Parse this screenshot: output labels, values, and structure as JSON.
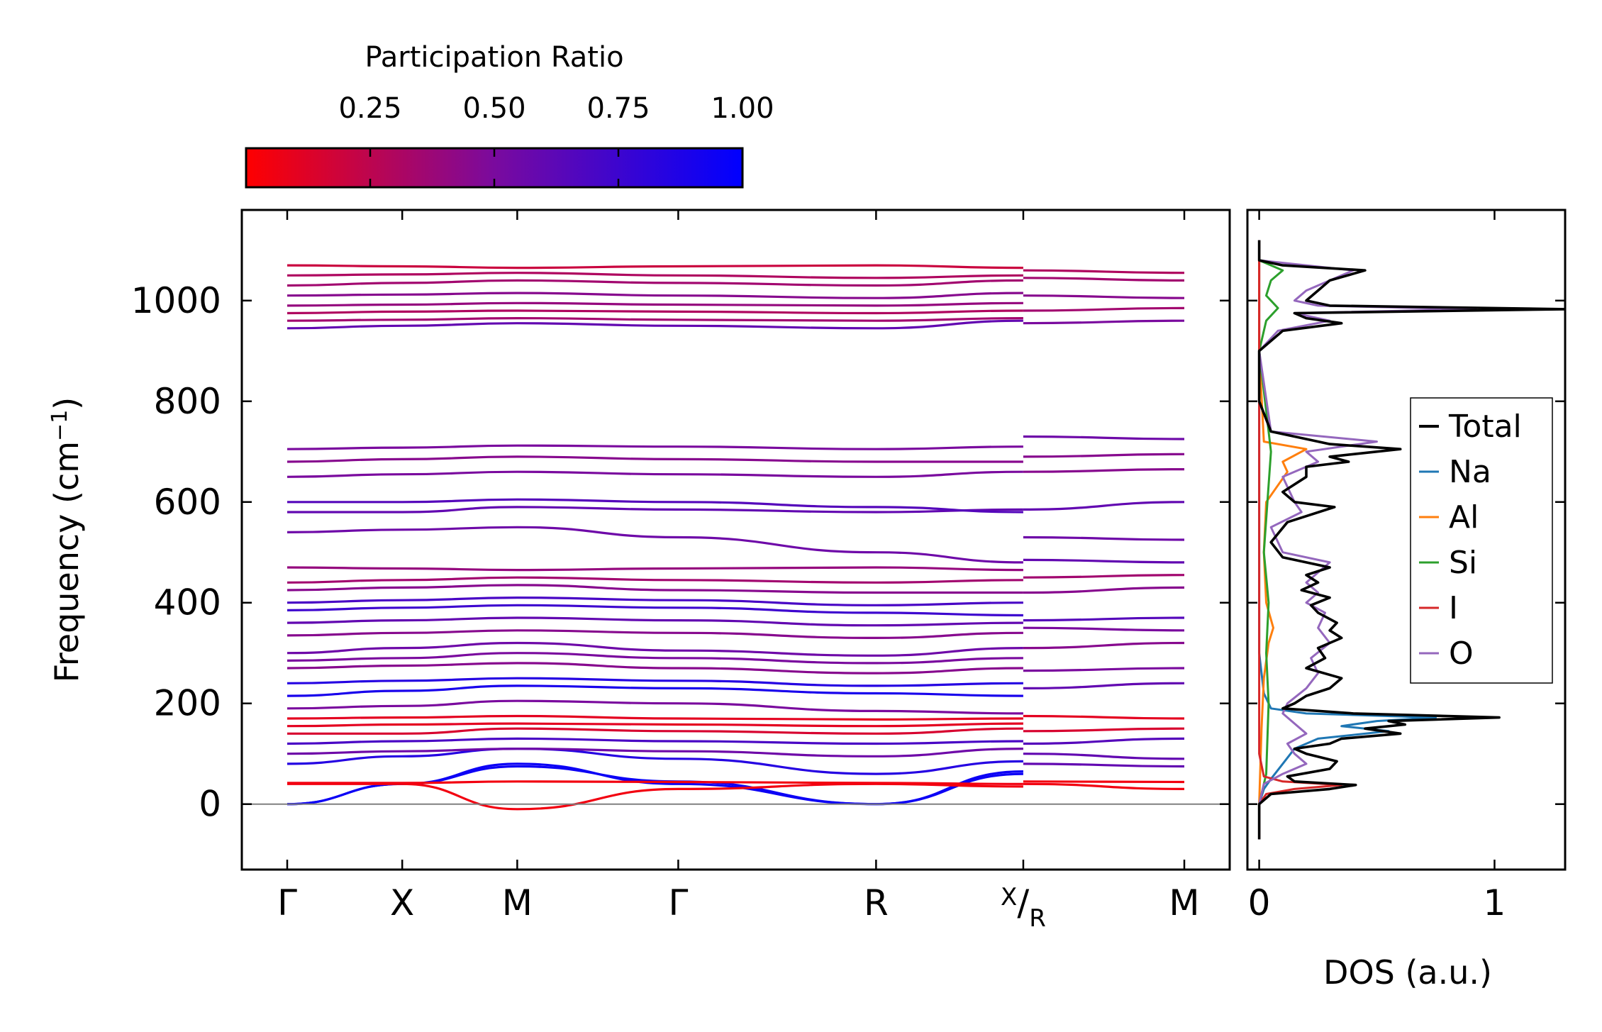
{
  "chart_data": [
    {
      "type": "line",
      "subtype": "phonon-band-structure",
      "ylabel_prefix": "Frequency (cm",
      "ylabel_sup": "−1",
      "ylabel_suffix": ")",
      "ylim": [
        -130,
        1180
      ],
      "yticks": [
        0,
        200,
        400,
        600,
        800,
        1000
      ],
      "x_segments": [
        [
          0,
          3.2
        ],
        [
          3.2,
          3.9
        ]
      ],
      "x_ticks": [
        {
          "pos": 0.0,
          "label": "Γ"
        },
        {
          "pos": 0.5,
          "label": "X"
        },
        {
          "pos": 1.0,
          "label": "M"
        },
        {
          "pos": 1.7,
          "label": "Γ"
        },
        {
          "pos": 2.56,
          "label": "R"
        },
        {
          "pos": 3.2,
          "label": "X",
          "label2": "R",
          "split": true
        },
        {
          "pos": 3.9,
          "label": "M"
        }
      ],
      "zero_line": 0,
      "bands_segment1": [
        {
          "y": [
            0,
            40,
            80,
            40,
            0,
            60,
            80
          ],
          "pr": 0.95
        },
        {
          "y": [
            0,
            40,
            75,
            45,
            0,
            65,
            80
          ],
          "pr": 0.95
        },
        {
          "y": [
            40,
            40,
            -10,
            30,
            40,
            35,
            38
          ],
          "pr": 0.05
        },
        {
          "y": [
            42,
            42,
            45,
            44,
            42,
            40,
            40
          ],
          "pr": 0.05
        },
        {
          "y": [
            80,
            95,
            110,
            90,
            60,
            85,
            90
          ],
          "pr": 0.85
        },
        {
          "y": [
            100,
            105,
            110,
            105,
            95,
            110,
            115
          ],
          "pr": 0.55
        },
        {
          "y": [
            120,
            125,
            130,
            125,
            120,
            125,
            128
          ],
          "pr": 0.7
        },
        {
          "y": [
            140,
            140,
            150,
            145,
            140,
            150,
            148
          ],
          "pr": 0.15
        },
        {
          "y": [
            155,
            158,
            160,
            158,
            155,
            160,
            160
          ],
          "pr": 0.1
        },
        {
          "y": [
            170,
            172,
            175,
            170,
            168,
            170,
            172
          ],
          "pr": 0.1
        },
        {
          "y": [
            190,
            195,
            205,
            200,
            185,
            180,
            190
          ],
          "pr": 0.5
        },
        {
          "y": [
            215,
            225,
            235,
            230,
            220,
            215,
            225
          ],
          "pr": 0.9
        },
        {
          "y": [
            240,
            245,
            250,
            245,
            235,
            240,
            240
          ],
          "pr": 0.85
        },
        {
          "y": [
            270,
            275,
            280,
            270,
            260,
            270,
            270
          ],
          "pr": 0.45
        },
        {
          "y": [
            285,
            290,
            300,
            290,
            280,
            290,
            290
          ],
          "pr": 0.5
        },
        {
          "y": [
            300,
            310,
            320,
            305,
            295,
            310,
            310
          ],
          "pr": 0.55
        },
        {
          "y": [
            335,
            340,
            345,
            340,
            330,
            340,
            345
          ],
          "pr": 0.45
        },
        {
          "y": [
            360,
            365,
            370,
            365,
            355,
            360,
            365
          ],
          "pr": 0.6
        },
        {
          "y": [
            385,
            390,
            395,
            390,
            380,
            375,
            390
          ],
          "pr": 0.75
        },
        {
          "y": [
            400,
            405,
            410,
            405,
            395,
            400,
            405
          ],
          "pr": 0.7
        },
        {
          "y": [
            425,
            430,
            435,
            425,
            420,
            420,
            430
          ],
          "pr": 0.45
        },
        {
          "y": [
            440,
            445,
            450,
            445,
            440,
            445,
            445
          ],
          "pr": 0.35
        },
        {
          "y": [
            470,
            468,
            465,
            468,
            470,
            465,
            470
          ],
          "pr": 0.4
        },
        {
          "y": [
            540,
            545,
            550,
            530,
            500,
            480,
            490
          ],
          "pr": 0.55
        },
        {
          "y": [
            580,
            580,
            590,
            585,
            580,
            585,
            585
          ],
          "pr": 0.6
        },
        {
          "y": [
            600,
            600,
            605,
            600,
            590,
            580,
            590
          ],
          "pr": 0.65
        },
        {
          "y": [
            650,
            655,
            660,
            655,
            650,
            660,
            660
          ],
          "pr": 0.5
        },
        {
          "y": [
            680,
            685,
            690,
            685,
            680,
            680,
            685
          ],
          "pr": 0.45
        },
        {
          "y": [
            705,
            708,
            712,
            710,
            705,
            710,
            710
          ],
          "pr": 0.5
        },
        {
          "y": [
            945,
            950,
            955,
            950,
            945,
            960,
            950
          ],
          "pr": 0.6
        },
        {
          "y": [
            960,
            962,
            965,
            962,
            960,
            965,
            965
          ],
          "pr": 0.35
        },
        {
          "y": [
            975,
            978,
            980,
            978,
            975,
            980,
            980
          ],
          "pr": 0.3
        },
        {
          "y": [
            990,
            992,
            995,
            992,
            990,
            995,
            995
          ],
          "pr": 0.4
        },
        {
          "y": [
            1010,
            1012,
            1015,
            1010,
            1005,
            1015,
            1010
          ],
          "pr": 0.45
        },
        {
          "y": [
            1030,
            1035,
            1040,
            1035,
            1030,
            1040,
            1045
          ],
          "pr": 0.35
        },
        {
          "y": [
            1050,
            1052,
            1055,
            1050,
            1045,
            1050,
            1050
          ],
          "pr": 0.3
        },
        {
          "y": [
            1070,
            1068,
            1065,
            1068,
            1070,
            1065,
            1070
          ],
          "pr": 0.2
        }
      ],
      "bands_segment2": [
        {
          "y": [
            80,
            75,
            70
          ],
          "pr": 0.6
        },
        {
          "y": [
            40,
            30,
            -15
          ],
          "pr": 0.05
        },
        {
          "y": [
            45,
            44,
            45
          ],
          "pr": 0.05
        },
        {
          "y": [
            100,
            90,
            90
          ],
          "pr": 0.6
        },
        {
          "y": [
            120,
            130,
            125
          ],
          "pr": 0.65
        },
        {
          "y": [
            145,
            150,
            160
          ],
          "pr": 0.15
        },
        {
          "y": [
            175,
            170,
            170
          ],
          "pr": 0.1
        },
        {
          "y": [
            230,
            240,
            250
          ],
          "pr": 0.6
        },
        {
          "y": [
            265,
            270,
            270
          ],
          "pr": 0.5
        },
        {
          "y": [
            310,
            320,
            330
          ],
          "pr": 0.45
        },
        {
          "y": [
            350,
            345,
            340
          ],
          "pr": 0.5
        },
        {
          "y": [
            365,
            370,
            360
          ],
          "pr": 0.65
        },
        {
          "y": [
            420,
            430,
            420
          ],
          "pr": 0.45
        },
        {
          "y": [
            450,
            455,
            460
          ],
          "pr": 0.35
        },
        {
          "y": [
            485,
            480,
            475
          ],
          "pr": 0.6
        },
        {
          "y": [
            530,
            525,
            515
          ],
          "pr": 0.55
        },
        {
          "y": [
            585,
            600,
            610
          ],
          "pr": 0.6
        },
        {
          "y": [
            660,
            665,
            665
          ],
          "pr": 0.45
        },
        {
          "y": [
            690,
            695,
            695
          ],
          "pr": 0.45
        },
        {
          "y": [
            730,
            725,
            720
          ],
          "pr": 0.55
        },
        {
          "y": [
            955,
            960,
            960
          ],
          "pr": 0.5
        },
        {
          "y": [
            980,
            985,
            985
          ],
          "pr": 0.35
        },
        {
          "y": [
            1010,
            1005,
            1000
          ],
          "pr": 0.45
        },
        {
          "y": [
            1045,
            1040,
            1045
          ],
          "pr": 0.35
        },
        {
          "y": [
            1060,
            1055,
            1065
          ],
          "pr": 0.3
        }
      ]
    },
    {
      "type": "colorbar",
      "title": "Participation Ratio",
      "range": [
        0.0,
        1.0
      ],
      "ticks": [
        0.25,
        0.5,
        0.75,
        1.0
      ],
      "tick_labels": [
        "0.25",
        "0.50",
        "0.75",
        "1.00"
      ],
      "colormap": {
        "low": "#ff0000",
        "mid": "#7a0a9e",
        "high": "#0000ff"
      }
    },
    {
      "type": "line",
      "subtype": "density-of-states",
      "xlabel": "DOS (a.u.)",
      "xlim": [
        -0.05,
        1.3
      ],
      "xticks": [
        0,
        1
      ],
      "xtick_labels": [
        "0",
        "1"
      ],
      "ylim": [
        -130,
        1180
      ],
      "legend_position": "right",
      "series": [
        {
          "name": "Total",
          "color": "#000000",
          "freq": [
            -70,
            0,
            20,
            30,
            38,
            45,
            55,
            70,
            85,
            100,
            110,
            120,
            130,
            140,
            150,
            158,
            165,
            172,
            180,
            190,
            200,
            215,
            230,
            250,
            270,
            290,
            310,
            330,
            345,
            360,
            380,
            395,
            410,
            425,
            440,
            455,
            470,
            490,
            520,
            560,
            590,
            600,
            620,
            650,
            670,
            680,
            690,
            705,
            715,
            725,
            740,
            800,
            900,
            940,
            955,
            965,
            975,
            983,
            990,
            1000,
            1020,
            1040,
            1060,
            1070,
            1080,
            1120
          ],
          "dos": [
            0,
            0,
            0.05,
            0.3,
            0.41,
            0.15,
            0.12,
            0.3,
            0.33,
            0.2,
            0.15,
            0.3,
            0.35,
            0.6,
            0.45,
            0.62,
            0.55,
            1.02,
            0.4,
            0.1,
            0.15,
            0.2,
            0.3,
            0.35,
            0.2,
            0.28,
            0.25,
            0.35,
            0.3,
            0.33,
            0.25,
            0.22,
            0.3,
            0.18,
            0.25,
            0.2,
            0.3,
            0.1,
            0.05,
            0.12,
            0.32,
            0.15,
            0.1,
            0.2,
            0.2,
            0.38,
            0.3,
            0.6,
            0.3,
            0.2,
            0.05,
            0,
            0,
            0.1,
            0.35,
            0.2,
            0.15,
            1.3,
            0.3,
            0.2,
            0.25,
            0.3,
            0.45,
            0.1,
            0,
            0
          ]
        },
        {
          "name": "Na",
          "color": "#1f77b4",
          "freq": [
            -70,
            0,
            30,
            50,
            80,
            110,
            130,
            145,
            155,
            165,
            172,
            180,
            190,
            220,
            300,
            1120
          ],
          "dos": [
            0,
            0,
            0.02,
            0.05,
            0.1,
            0.15,
            0.25,
            0.55,
            0.35,
            0.5,
            0.75,
            0.2,
            0.05,
            0.02,
            0,
            0
          ]
        },
        {
          "name": "Al",
          "color": "#ff7f0e",
          "freq": [
            -70,
            0,
            150,
            250,
            320,
            350,
            400,
            500,
            600,
            660,
            680,
            705,
            720,
            900,
            1120
          ],
          "dos": [
            0,
            0,
            0.01,
            0.02,
            0.04,
            0.06,
            0.03,
            0.02,
            0.03,
            0.12,
            0.1,
            0.2,
            0.02,
            0,
            0
          ]
        },
        {
          "name": "Si",
          "color": "#2ca02c",
          "freq": [
            -70,
            0,
            60,
            200,
            300,
            400,
            500,
            700,
            900,
            960,
            985,
            1010,
            1040,
            1060,
            1080,
            1120
          ],
          "dos": [
            0,
            0,
            0.03,
            0.04,
            0.03,
            0.04,
            0.02,
            0.05,
            0,
            0.03,
            0.08,
            0.03,
            0.05,
            0.1,
            0,
            0
          ]
        },
        {
          "name": "I",
          "color": "#d62728",
          "freq": [
            -70,
            0,
            20,
            30,
            38,
            45,
            55,
            100,
            1120
          ],
          "dos": [
            0,
            0,
            0.03,
            0.15,
            0.35,
            0.1,
            0.02,
            0,
            0
          ]
        },
        {
          "name": "O",
          "color": "#9467bd",
          "freq": [
            -70,
            0,
            40,
            60,
            80,
            100,
            120,
            140,
            160,
            180,
            200,
            230,
            260,
            290,
            320,
            350,
            380,
            400,
            420,
            440,
            460,
            480,
            500,
            550,
            580,
            600,
            650,
            680,
            700,
            720,
            740,
            900,
            940,
            960,
            975,
            983,
            990,
            1000,
            1020,
            1040,
            1060,
            1080,
            1120
          ],
          "dos": [
            0,
            0,
            0.02,
            0.1,
            0.2,
            0.15,
            0.12,
            0.2,
            0.15,
            0.1,
            0.12,
            0.2,
            0.25,
            0.22,
            0.3,
            0.25,
            0.28,
            0.2,
            0.25,
            0.2,
            0.25,
            0.3,
            0.1,
            0.05,
            0.18,
            0.15,
            0.1,
            0.25,
            0.2,
            0.5,
            0.05,
            0,
            0.08,
            0.3,
            0.15,
            0.92,
            0.25,
            0.15,
            0.2,
            0.3,
            0.4,
            0,
            0
          ]
        }
      ]
    }
  ]
}
